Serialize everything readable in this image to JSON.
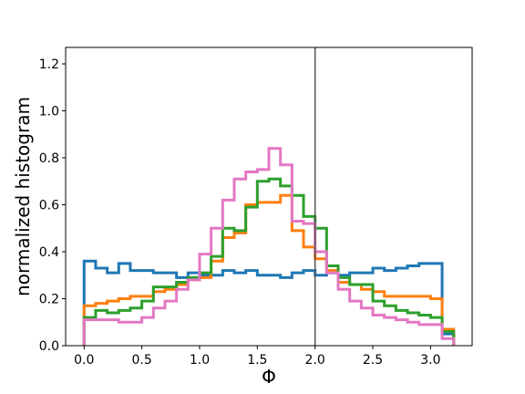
{
  "chart_data": {
    "type": "line",
    "title": "",
    "xlabel": "Φ",
    "ylabel": "normalized histogram",
    "xlim": [
      -0.16,
      3.36
    ],
    "ylim": [
      0.0,
      1.27
    ],
    "xticks": [
      0.0,
      0.5,
      1.0,
      1.5,
      2.0,
      2.5,
      3.0
    ],
    "xtick_labels": [
      "0.0",
      "0.5",
      "1.0",
      "1.5",
      "2.0",
      "2.5",
      "3.0"
    ],
    "yticks": [
      0.0,
      0.2,
      0.4,
      0.6,
      0.8,
      1.0,
      1.2
    ],
    "ytick_labels": [
      "0.0",
      "0.2",
      "0.4",
      "0.6",
      "0.8",
      "1.0",
      "1.2"
    ],
    "grid": false,
    "legend": "none",
    "vline": 2.0,
    "vline_color": "#555555",
    "bin_edges": [
      0.0,
      0.1,
      0.2,
      0.3,
      0.4,
      0.5,
      0.6,
      0.7,
      0.8,
      0.9,
      1.0,
      1.1,
      1.2,
      1.3,
      1.4,
      1.5,
      1.6,
      1.7,
      1.8,
      1.9,
      2.0,
      2.1,
      2.2,
      2.3,
      2.4,
      2.5,
      2.6,
      2.7,
      2.8,
      2.9,
      3.0,
      3.1,
      3.2
    ],
    "series": [
      {
        "color": "#1f77b4",
        "values": [
          0.36,
          0.33,
          0.31,
          0.35,
          0.32,
          0.32,
          0.31,
          0.31,
          0.29,
          0.31,
          0.3,
          0.3,
          0.32,
          0.31,
          0.32,
          0.3,
          0.3,
          0.29,
          0.31,
          0.32,
          0.3,
          0.31,
          0.3,
          0.31,
          0.31,
          0.33,
          0.32,
          0.33,
          0.34,
          0.35,
          0.35,
          0.05
        ]
      },
      {
        "color": "#ff7f0e",
        "values": [
          0.17,
          0.18,
          0.19,
          0.2,
          0.21,
          0.21,
          0.23,
          0.24,
          0.26,
          0.28,
          0.29,
          0.36,
          0.46,
          0.48,
          0.6,
          0.61,
          0.61,
          0.64,
          0.49,
          0.42,
          0.37,
          0.32,
          0.27,
          0.26,
          0.24,
          0.23,
          0.21,
          0.21,
          0.21,
          0.21,
          0.2,
          0.07
        ]
      },
      {
        "color": "#2ca02c",
        "values": [
          0.12,
          0.15,
          0.14,
          0.15,
          0.16,
          0.19,
          0.25,
          0.25,
          0.27,
          0.29,
          0.31,
          0.38,
          0.5,
          0.49,
          0.59,
          0.7,
          0.71,
          0.68,
          0.64,
          0.55,
          0.5,
          0.34,
          0.29,
          0.26,
          0.26,
          0.19,
          0.17,
          0.15,
          0.14,
          0.13,
          0.12,
          0.06
        ]
      },
      {
        "color": "#e377c2",
        "values": [
          0.11,
          0.11,
          0.11,
          0.1,
          0.1,
          0.12,
          0.16,
          0.19,
          0.24,
          0.28,
          0.39,
          0.5,
          0.62,
          0.71,
          0.74,
          0.75,
          0.84,
          0.77,
          0.53,
          0.52,
          0.4,
          0.31,
          0.24,
          0.19,
          0.16,
          0.13,
          0.12,
          0.11,
          0.1,
          0.09,
          0.09,
          0.03
        ]
      }
    ]
  }
}
